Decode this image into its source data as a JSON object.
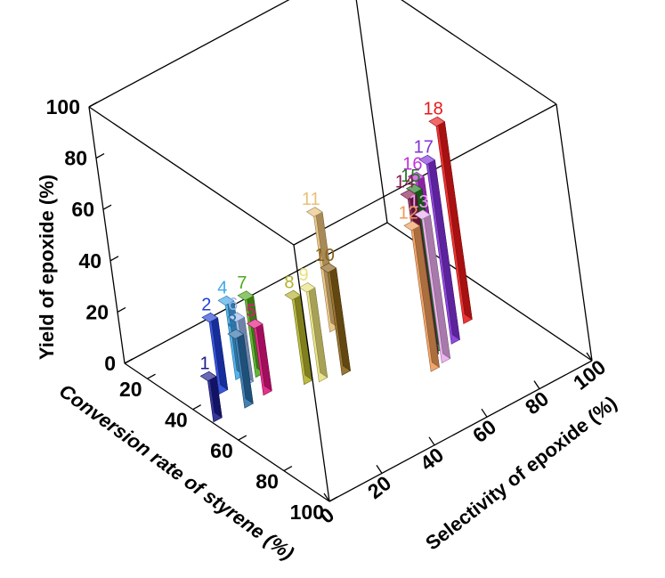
{
  "chart_data": {
    "type": "bar3d",
    "title": "",
    "xlabel": "Conversion rate of styrene (%)",
    "ylabel": "Selectivity of epoxide (%)",
    "zlabel": "Yield of epoxide (%)",
    "x_ticks": [
      "20",
      "40",
      "60",
      "80",
      "100"
    ],
    "y_ticks": [
      "0",
      "20",
      "40",
      "60",
      "80",
      "100"
    ],
    "z_ticks": [
      "0",
      "20",
      "40",
      "60",
      "80",
      "100"
    ],
    "xlim": [
      10,
      100
    ],
    "ylim": [
      0,
      100
    ],
    "zlim": [
      0,
      100
    ],
    "grid": false,
    "bars": [
      {
        "label": "1",
        "conversion": 47,
        "selectivity": 2,
        "yield": 16,
        "color": "#1a1a8c"
      },
      {
        "label": "2",
        "conversion": 38,
        "selectivity": 12,
        "yield": 28,
        "color": "#1f3fd6"
      },
      {
        "label": "3",
        "conversion": 48,
        "selectivity": 13,
        "yield": 27,
        "color": "#2a6fa8"
      },
      {
        "label": "4",
        "conversion": 36,
        "selectivity": 20,
        "yield": 29,
        "color": "#3ea7e8"
      },
      {
        "label": "5",
        "conversion": 47,
        "selectivity": 21,
        "yield": 26,
        "color": "#e0147e"
      },
      {
        "label": "6",
        "conversion": 40,
        "selectivity": 20,
        "yield": 25,
        "color": "#9ab6ea"
      },
      {
        "label": "7",
        "conversion": 39,
        "selectivity": 25,
        "yield": 30,
        "color": "#4faa1c"
      },
      {
        "label": "8",
        "conversion": 51,
        "selectivity": 33,
        "yield": 33,
        "color": "#b2b02a"
      },
      {
        "label": "9",
        "conversion": 53,
        "selectivity": 37,
        "yield": 35,
        "color": "#e8e07a"
      },
      {
        "label": "10",
        "conversion": 55,
        "selectivity": 44,
        "yield": 40,
        "color": "#8a6218"
      },
      {
        "label": "11",
        "conversion": 37,
        "selectivity": 55,
        "yield": 45,
        "color": "#e8c07a"
      },
      {
        "label": "12",
        "conversion": 71,
        "selectivity": 64,
        "yield": 55,
        "color": "#ee9a58"
      },
      {
        "label": "13",
        "conversion": 70,
        "selectivity": 69,
        "yield": 56,
        "color": "#e8aaee"
      },
      {
        "label": "14",
        "conversion": 66,
        "selectivity": 68,
        "yield": 62,
        "color": "#881a52"
      },
      {
        "label": "15",
        "conversion": 65,
        "selectivity": 71,
        "yield": 62,
        "color": "#1e7a1e"
      },
      {
        "label": "16",
        "conversion": 64,
        "selectivity": 73,
        "yield": 65,
        "color": "#c030e0"
      },
      {
        "label": "17",
        "conversion": 65,
        "selectivity": 77,
        "yield": 70,
        "color": "#8030d8"
      },
      {
        "label": "18",
        "conversion": 60,
        "selectivity": 86,
        "yield": 77,
        "color": "#e81818"
      }
    ]
  }
}
